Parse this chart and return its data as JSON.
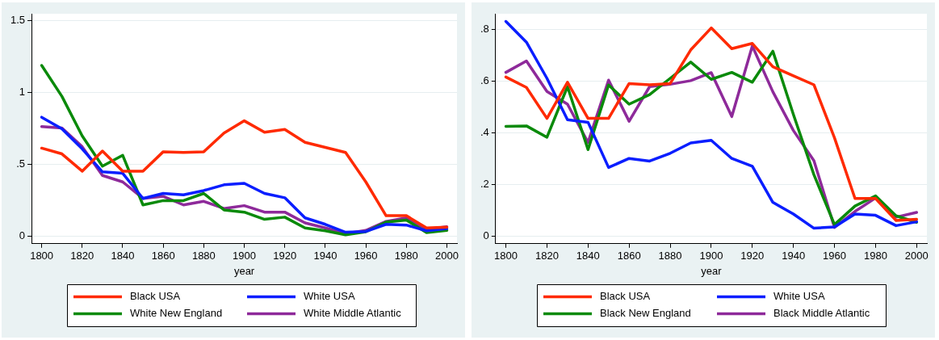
{
  "chart_data": [
    {
      "type": "line",
      "xlabel": "year",
      "x": [
        1800,
        1810,
        1820,
        1830,
        1840,
        1850,
        1860,
        1870,
        1880,
        1890,
        1900,
        1910,
        1920,
        1930,
        1940,
        1950,
        1960,
        1970,
        1980,
        1990,
        2000
      ],
      "xlim": [
        1795,
        2005
      ],
      "xticks": [
        1800,
        1820,
        1840,
        1860,
        1880,
        1900,
        1920,
        1940,
        1960,
        1980,
        2000
      ],
      "ylim": [
        -0.05,
        1.55
      ],
      "yticks": [
        0,
        {
          "value": 0.5,
          "label": ".5"
        },
        1,
        1.5
      ],
      "grid": "y",
      "legend": "bottom",
      "marker": "none",
      "line_style": "solid",
      "series": [
        {
          "name": "Black USA",
          "color": "#ff2a00",
          "values": [
            0.615,
            0.575,
            0.455,
            0.595,
            0.455,
            0.455,
            0.59,
            0.585,
            0.59,
            0.72,
            0.805,
            0.725,
            0.745,
            0.655,
            0.62,
            0.585,
            0.38,
            0.145,
            0.145,
            0.06,
            0.065
          ]
        },
        {
          "name": "White USA",
          "color": "#0a1eff",
          "values": [
            0.83,
            0.75,
            0.61,
            0.45,
            0.44,
            0.265,
            0.3,
            0.29,
            0.32,
            0.36,
            0.37,
            0.3,
            0.27,
            0.13,
            0.085,
            0.03,
            0.035,
            0.085,
            0.08,
            0.04,
            0.055
          ]
        },
        {
          "name": "White New England",
          "color": "#0a8a0a",
          "values": [
            1.19,
            0.975,
            0.7,
            0.49,
            0.565,
            0.22,
            0.25,
            0.25,
            0.3,
            0.185,
            0.17,
            0.12,
            0.135,
            0.06,
            0.04,
            0.012,
            0.033,
            0.1,
            0.115,
            0.027,
            0.043
          ]
        },
        {
          "name": "White Middle Atlantic",
          "color": "#8e2a9a",
          "values": [
            0.765,
            0.755,
            0.625,
            0.425,
            0.38,
            0.265,
            0.28,
            0.22,
            0.245,
            0.195,
            0.215,
            0.17,
            0.17,
            0.095,
            0.06,
            0.02,
            0.043,
            0.105,
            0.13,
            0.05,
            0.068
          ]
        }
      ]
    },
    {
      "type": "line",
      "xlabel": "year",
      "x": [
        1800,
        1810,
        1820,
        1830,
        1840,
        1850,
        1860,
        1870,
        1880,
        1890,
        1900,
        1910,
        1920,
        1930,
        1940,
        1950,
        1960,
        1970,
        1980,
        1990,
        2000
      ],
      "xlim": [
        1795,
        2005
      ],
      "xticks": [
        1800,
        1820,
        1840,
        1860,
        1880,
        1900,
        1920,
        1940,
        1960,
        1980,
        2000
      ],
      "ylim": [
        -0.03,
        0.86
      ],
      "yticks": [
        {
          "value": 0,
          "label": "0"
        },
        {
          "value": 0.2,
          "label": ".2"
        },
        {
          "value": 0.4,
          "label": ".4"
        },
        {
          "value": 0.6,
          "label": ".6"
        },
        {
          "value": 0.8,
          "label": ".8"
        }
      ],
      "grid": "y",
      "legend": "bottom",
      "marker": "none",
      "line_style": "solid",
      "series": [
        {
          "name": "Black USA",
          "color": "#ff2a00",
          "values": [
            0.615,
            0.575,
            0.455,
            0.595,
            0.455,
            0.455,
            0.59,
            0.585,
            0.59,
            0.72,
            0.805,
            0.725,
            0.745,
            0.655,
            0.62,
            0.585,
            0.38,
            0.145,
            0.145,
            0.06,
            0.065
          ]
        },
        {
          "name": "White USA",
          "color": "#0a1eff",
          "values": [
            0.83,
            0.75,
            0.61,
            0.45,
            0.44,
            0.265,
            0.3,
            0.29,
            0.32,
            0.36,
            0.37,
            0.3,
            0.27,
            0.13,
            0.085,
            0.03,
            0.035,
            0.085,
            0.08,
            0.04,
            0.055
          ]
        },
        {
          "name": "Black New England",
          "color": "#0a8a0a",
          "values": [
            0.424,
            0.426,
            0.382,
            0.578,
            0.334,
            0.584,
            0.51,
            0.547,
            0.61,
            0.673,
            0.606,
            0.633,
            0.595,
            0.715,
            0.47,
            0.237,
            0.044,
            0.116,
            0.155,
            0.078,
            0.053
          ]
        },
        {
          "name": "Black Middle Atlantic",
          "color": "#8e2a9a",
          "values": [
            0.633,
            0.677,
            0.559,
            0.51,
            0.362,
            0.603,
            0.444,
            0.578,
            0.587,
            0.601,
            0.632,
            0.462,
            0.735,
            0.558,
            0.408,
            0.291,
            0.033,
            0.095,
            0.147,
            0.073,
            0.091
          ]
        }
      ]
    }
  ]
}
